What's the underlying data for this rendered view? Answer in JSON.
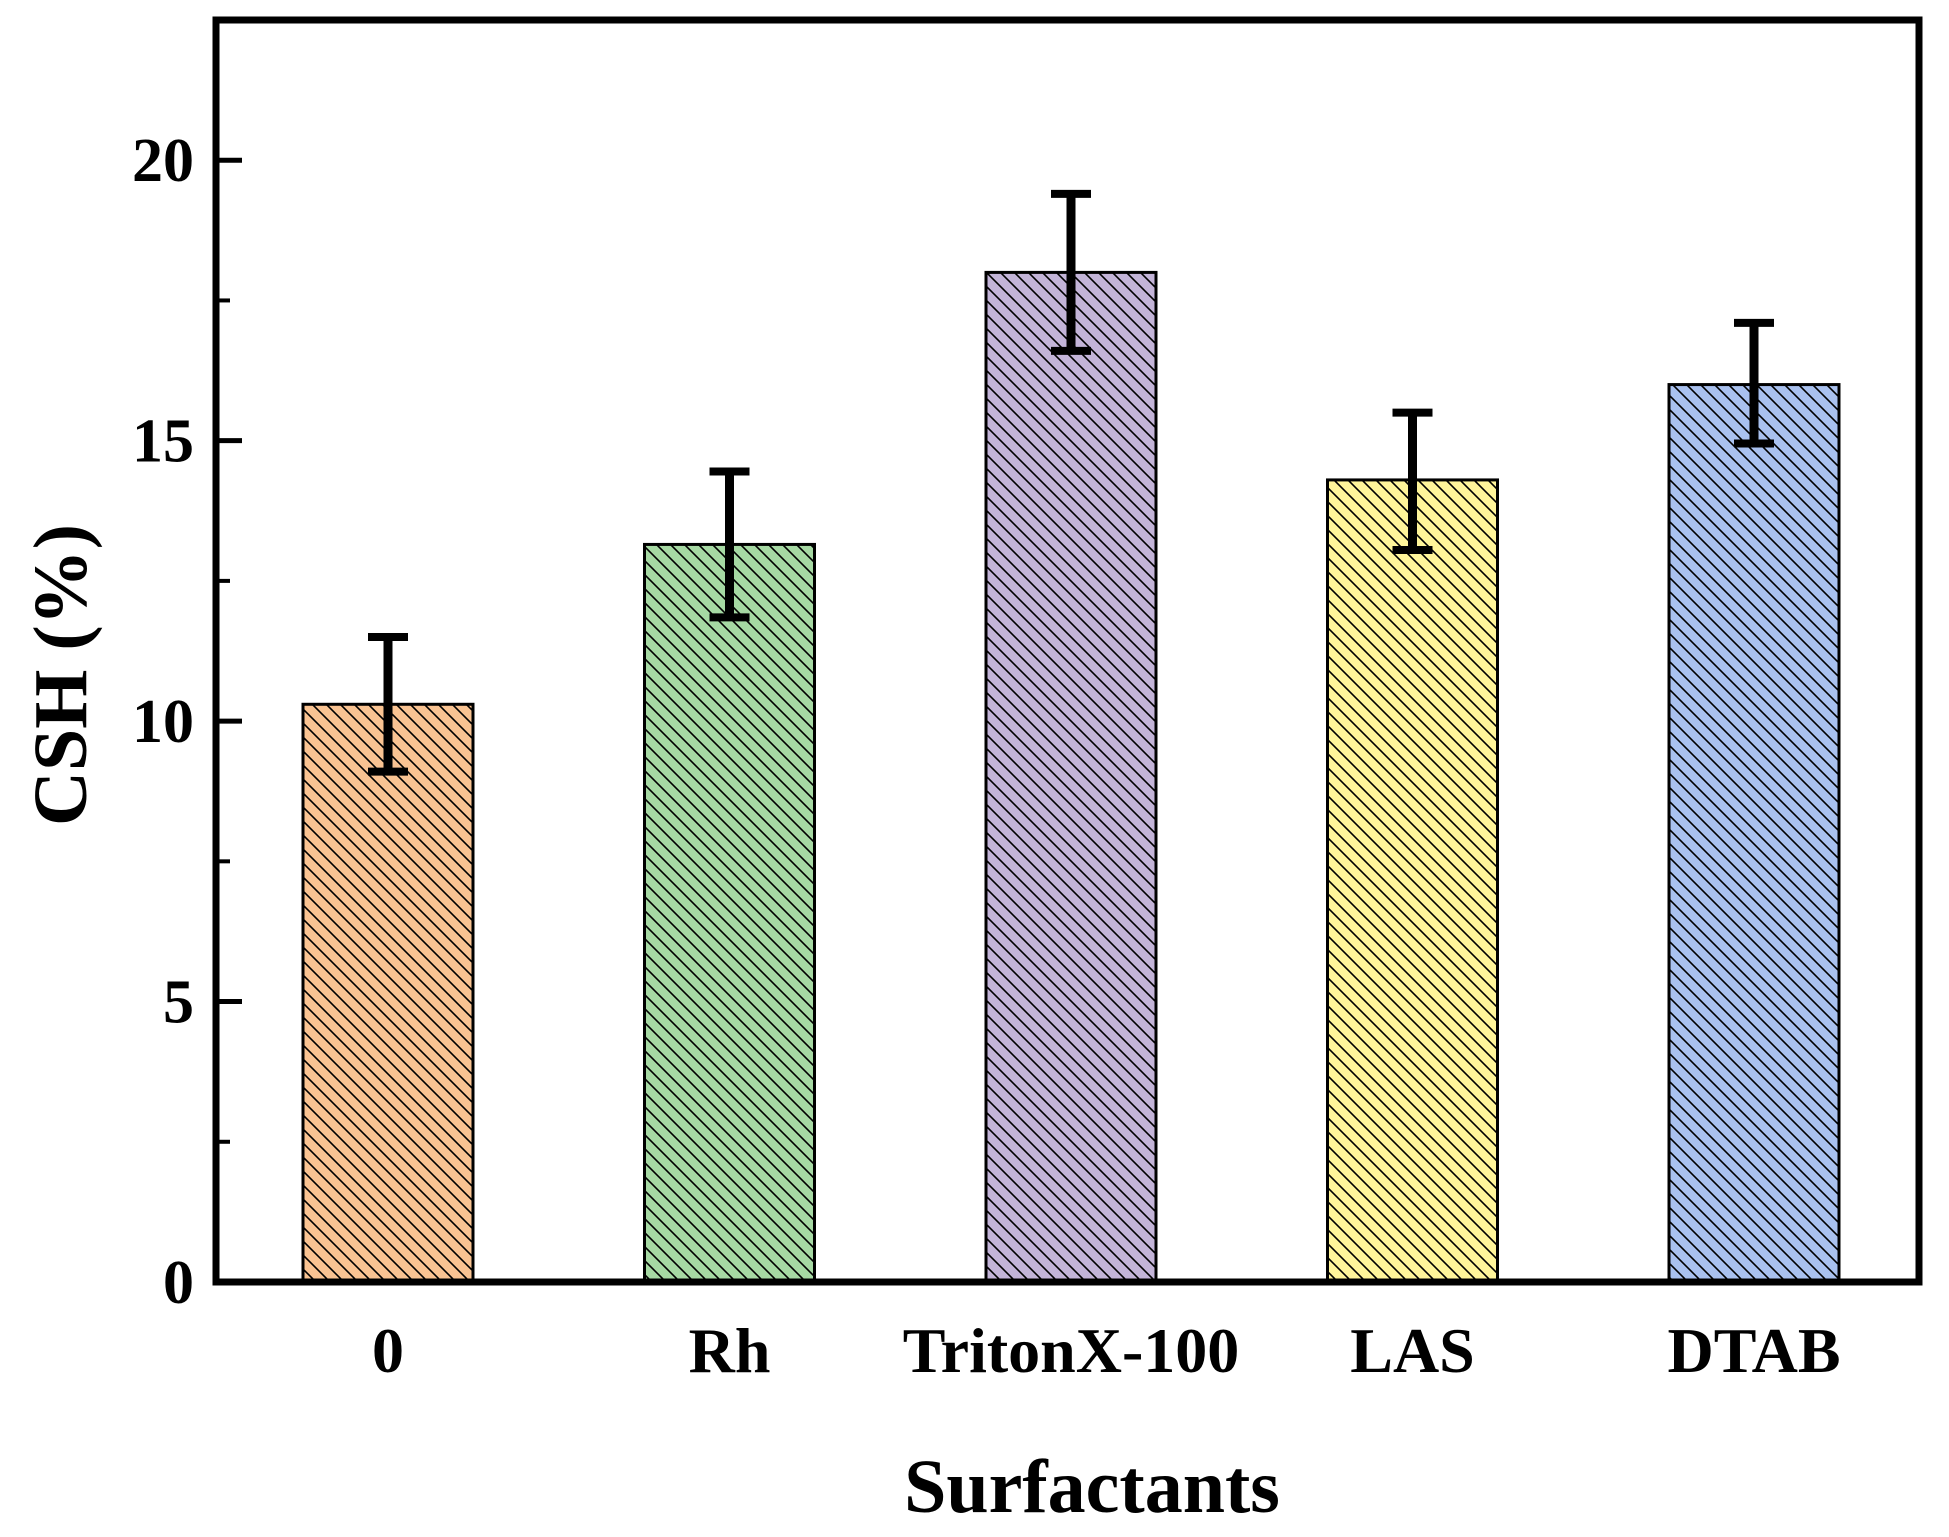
{
  "chart_data": {
    "type": "bar",
    "title": "",
    "xlabel": "Surfactants",
    "ylabel": "CSH (%)",
    "ylim": [
      0,
      22.5
    ],
    "yticks": [
      0,
      5,
      10,
      15,
      20
    ],
    "yticks_minor": [
      2.5,
      7.5,
      12.5,
      17.5
    ],
    "yticklabels": [
      "0",
      "5",
      "10",
      "15",
      "20"
    ],
    "grid": false,
    "categories": [
      "0",
      "Rh",
      "TritonX-100",
      "LAS",
      "DTAB"
    ],
    "values": [
      10.3,
      13.15,
      18.0,
      14.3,
      16.0
    ],
    "error_upper": [
      11.5,
      14.45,
      19.4,
      15.5,
      17.1
    ],
    "error_lower": [
      9.1,
      11.85,
      16.6,
      13.05,
      14.95
    ],
    "colors": [
      "#F9C392",
      "#A6D9A3",
      "#C3B4D8",
      "#FFF59A",
      "#A9C1EF"
    ],
    "hatch": "diagonal"
  }
}
